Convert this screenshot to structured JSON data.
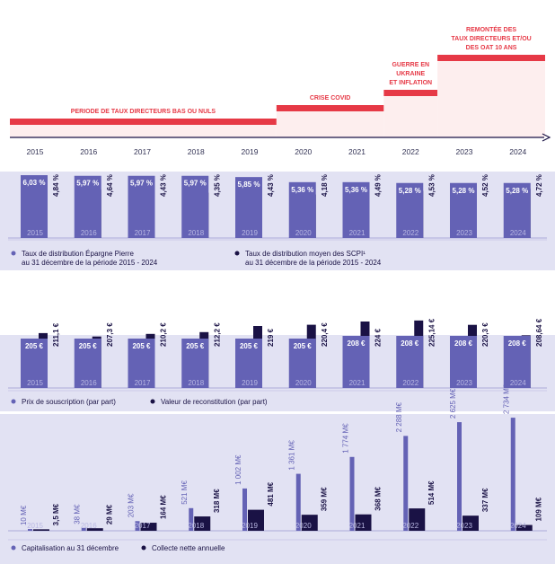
{
  "years": [
    "2015",
    "2016",
    "2017",
    "2018",
    "2019",
    "2020",
    "2021",
    "2022",
    "2023",
    "2024"
  ],
  "colors": {
    "primary_bar": "#6462b5",
    "secondary_bar": "#1a1245",
    "panel_bg": "#e2e2f3",
    "phase_red": "#e63946",
    "phase_fill": "#fdeeee",
    "axis": "#1a1245"
  },
  "timeline": {
    "phases": [
      {
        "label_lines": [
          "PERIODE DE TAUX DIRECTEURS BAS OU NULS"
        ],
        "start_year": "2015",
        "end_year": "2019"
      },
      {
        "label_lines": [
          "CRISE COVID"
        ],
        "start_year": "2020",
        "end_year": "2021"
      },
      {
        "label_lines": [
          "GUERRE EN",
          "UKRAINE",
          "ET INFLATION"
        ],
        "start_year": "2022",
        "end_year": "2022"
      },
      {
        "label_lines": [
          "REMONTÉE DES",
          "TAUX DIRECTEURS ET/OU",
          "DES OAT 10 ANS"
        ],
        "start_year": "2023",
        "end_year": "2024"
      }
    ]
  },
  "chart_data": [
    {
      "type": "bar",
      "categories": [
        "2015",
        "2016",
        "2017",
        "2018",
        "2019",
        "2020",
        "2021",
        "2022",
        "2023",
        "2024"
      ],
      "series": [
        {
          "name": "Taux de distribution Épargne Pierre au 31 décembre de la période 2015 - 2024",
          "values": [
            6.03,
            5.97,
            5.97,
            5.97,
            5.85,
            5.36,
            5.36,
            5.28,
            5.28,
            5.28
          ],
          "labels": [
            "6,03 %",
            "5,97 %",
            "5,97 %",
            "5,97 %",
            "5,85 %",
            "5,36 %",
            "5,36 %",
            "5,28 %",
            "5,28 %",
            "5,28 %"
          ]
        },
        {
          "name": "Taux de distribution moyen des SCPI¹ au 31 décembre de la période 2015 - 2024",
          "values": [
            4.84,
            4.64,
            4.43,
            4.35,
            4.43,
            4.18,
            4.49,
            4.53,
            4.52,
            4.72
          ],
          "labels": [
            "4,84 %",
            "4,64 %",
            "4,43 %",
            "4,35 %",
            "4,43 %",
            "4,18 %",
            "4,49 %",
            "4,53 %",
            "4,52 %",
            "4,72 %"
          ]
        }
      ],
      "legend": [
        {
          "lines": [
            "Taux de distribution Épargne Pierre",
            "au 31 décembre de la période 2015 - 2024"
          ]
        },
        {
          "lines": [
            "Taux de distribution moyen des SCPI¹",
            "au 31 décembre de la période 2015 - 2024"
          ]
        }
      ]
    },
    {
      "type": "bar",
      "categories": [
        "2015",
        "2016",
        "2017",
        "2018",
        "2019",
        "2020",
        "2021",
        "2022",
        "2023",
        "2024"
      ],
      "series": [
        {
          "name": "Prix de souscription (par part)",
          "values": [
            205,
            205,
            205,
            205,
            205,
            205,
            208,
            208,
            208,
            208
          ],
          "labels": [
            "205 €",
            "205 €",
            "205 €",
            "205 €",
            "205 €",
            "205 €",
            "208 €",
            "208 €",
            "208 €",
            "208 €"
          ]
        },
        {
          "name": "Valeur de reconstitution (par part)",
          "values": [
            211.1,
            207.3,
            210.2,
            212.2,
            219,
            220.4,
            224,
            225.14,
            220.3,
            208.64
          ],
          "labels": [
            "211,1 €",
            "207,3 €",
            "210,2 €",
            "212,2 €",
            "219 €",
            "220,4 €",
            "224 €",
            "225,14 €",
            "220,3 €",
            "208,64 €"
          ]
        }
      ],
      "legend": [
        {
          "lines": [
            "Prix de souscription (par part)"
          ]
        },
        {
          "lines": [
            "Valeur de reconstitution (par part)"
          ]
        }
      ]
    },
    {
      "type": "bar",
      "categories": [
        "2015",
        "2016",
        "2017",
        "2018",
        "2019",
        "2020",
        "2021",
        "2022",
        "2023",
        "2024"
      ],
      "series": [
        {
          "name": "Capitalisation au 31 décembre",
          "values": [
            10,
            38,
            203,
            521,
            1002,
            1361,
            1774,
            2288,
            2625,
            2734
          ],
          "labels": [
            "10 M€",
            "38 M€",
            "203 M€",
            "521 M€",
            "1 002 M€",
            "1 361 M€",
            "1 774 M€",
            "2 288 M€",
            "2 625 M€",
            "2 734 M€"
          ]
        },
        {
          "name": "Collecte nette annuelle",
          "values": [
            3.5,
            29,
            164,
            318,
            481,
            359,
            368,
            514,
            337,
            109
          ],
          "labels": [
            "3,5 M€",
            "29 M€",
            "164 M€",
            "318 M€",
            "481 M€",
            "359 M€",
            "368 M€",
            "514 M€",
            "337 M€",
            "109 M€"
          ]
        }
      ],
      "legend": [
        {
          "lines": [
            "Capitalisation au 31 décembre"
          ]
        },
        {
          "lines": [
            "Collecte nette annuelle"
          ]
        }
      ]
    }
  ]
}
